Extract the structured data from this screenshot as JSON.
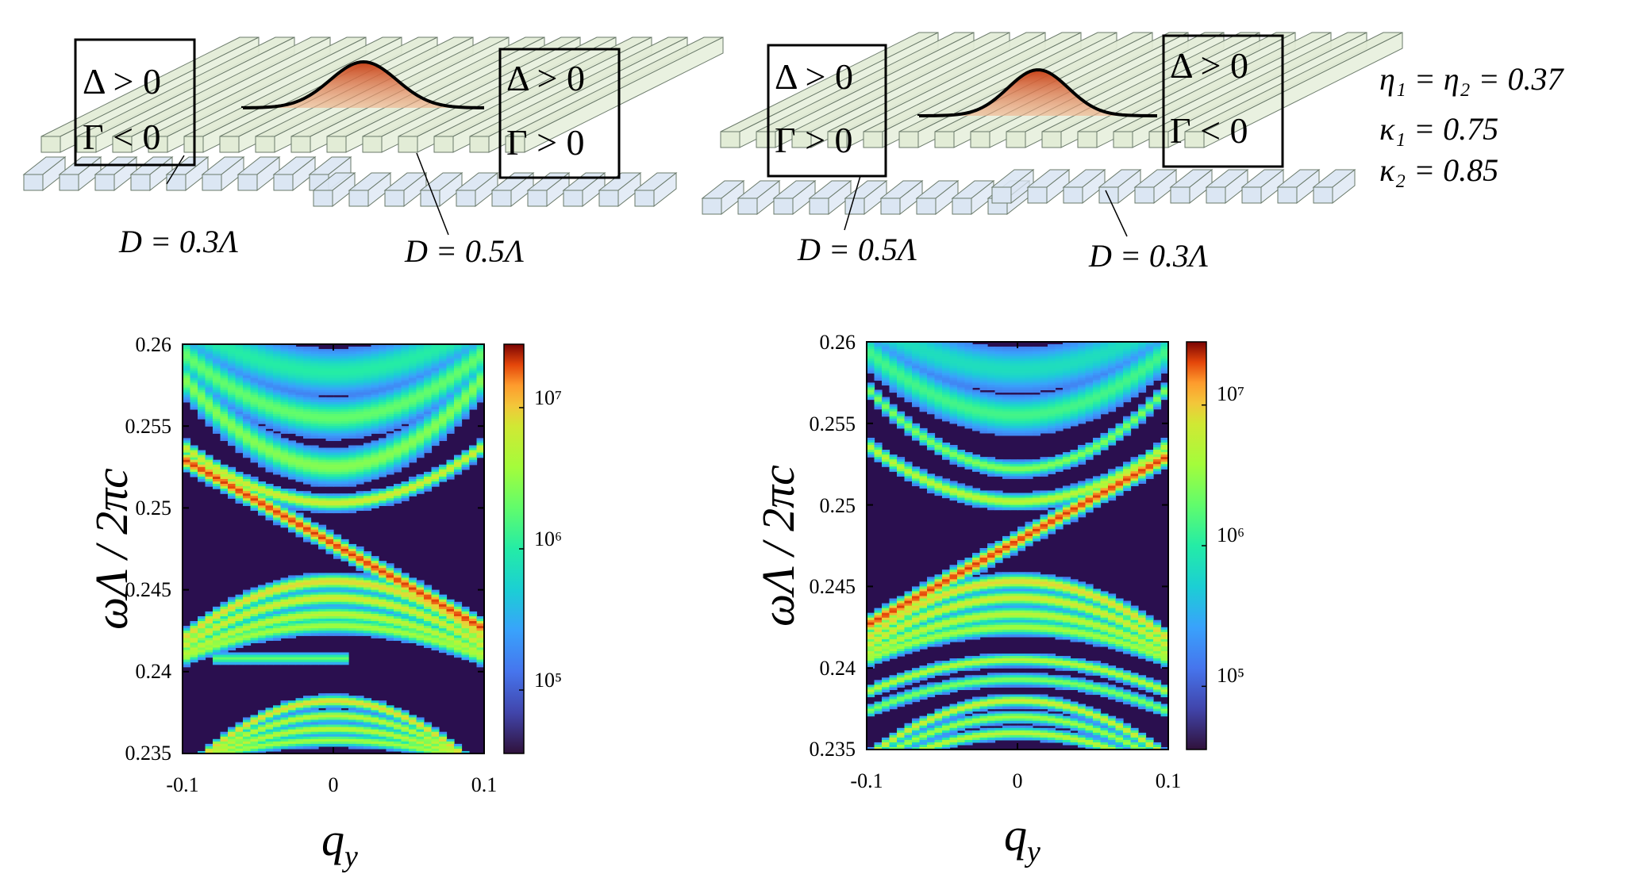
{
  "figure": {
    "left_structure": {
      "box_left": {
        "line1": "Δ > 0",
        "line2": "Γ < 0"
      },
      "box_right": {
        "line1": "Δ > 0",
        "line2": "Γ > 0"
      },
      "label_bottom_left": "D = 0.3Λ",
      "label_bottom_right": "D = 0.5Λ"
    },
    "right_structure": {
      "box_left": {
        "line1": "Δ > 0",
        "line2": "Γ > 0"
      },
      "box_right": {
        "line1": "Δ > 0",
        "line2": "Γ < 0"
      },
      "label_bottom_left": "D = 0.5Λ",
      "label_bottom_right": "D = 0.3Λ"
    },
    "parameters": [
      "η₁ = η₂ = 0.37",
      "κ₁ = 0.75",
      "κ₂ = 0.85"
    ],
    "colors": {
      "background": "#2a0f4f",
      "green_bars": "#e2ecd6",
      "blue_bars": "#dbe6f3",
      "pulse": "#d9531e"
    }
  },
  "chart_data": [
    {
      "type": "heatmap",
      "title": "",
      "xlabel": "q_y",
      "ylabel": "ωΛ / 2πc",
      "xlim": [
        -0.1,
        0.1
      ],
      "ylim": [
        0.235,
        0.26
      ],
      "x_ticks": [
        "-0.1",
        "0",
        "0.1"
      ],
      "y_ticks": [
        "0.26",
        "0.255",
        "0.25",
        "0.245",
        "0.24",
        "0.235"
      ],
      "colorbar": {
        "scale": "log",
        "ticks": [
          "10⁷",
          "10⁶",
          "10⁵"
        ],
        "range": [
          30000,
          20000000
        ]
      },
      "bands": [
        {
          "kind": "parabola",
          "vertex": 0.2583,
          "curvature": 0.3,
          "strength": 0.35,
          "width": 0.0012
        },
        {
          "kind": "parabola",
          "vertex": 0.2555,
          "curvature": 0.4,
          "strength": 0.45,
          "width": 0.001
        },
        {
          "kind": "parabola",
          "vertex": 0.2525,
          "curvature": 0.55,
          "strength": 0.5,
          "width": 0.0009
        },
        {
          "kind": "parabola",
          "vertex": 0.2503,
          "curvature": 0.35,
          "strength": 0.65,
          "width": 0.0004
        },
        {
          "kind": "line",
          "at_q0": 0.2478,
          "slope": -0.052,
          "strength": 0.95,
          "width": 0.00045
        },
        {
          "kind": "parabola",
          "vertex": 0.2455,
          "curvature": -0.35,
          "strength": 0.7,
          "width": 0.0004
        },
        {
          "kind": "parabola",
          "vertex": 0.2445,
          "curvature": -0.3,
          "strength": 0.65,
          "width": 0.0004
        },
        {
          "kind": "parabola",
          "vertex": 0.2435,
          "curvature": -0.25,
          "strength": 0.6,
          "width": 0.0004
        },
        {
          "kind": "parabola",
          "vertex": 0.2428,
          "curvature": -0.2,
          "strength": 0.55,
          "width": 0.0004
        },
        {
          "kind": "segment",
          "at": 0.2408,
          "from": -0.08,
          "to": 0.01,
          "strength": 0.45,
          "width": 0.0003
        },
        {
          "kind": "parabola",
          "vertex": 0.2382,
          "curvature": -0.45,
          "strength": 0.7,
          "width": 0.0003
        },
        {
          "kind": "parabola",
          "vertex": 0.2373,
          "curvature": -0.35,
          "strength": 0.6,
          "width": 0.0003
        },
        {
          "kind": "parabola",
          "vertex": 0.2365,
          "curvature": -0.25,
          "strength": 0.6,
          "width": 0.0003
        },
        {
          "kind": "parabola",
          "vertex": 0.2358,
          "curvature": -0.15,
          "strength": 0.55,
          "width": 0.0003
        }
      ]
    },
    {
      "type": "heatmap",
      "title": "",
      "xlabel": "q_y",
      "ylabel": "ωΛ / 2πc",
      "xlim": [
        -0.1,
        0.1
      ],
      "ylim": [
        0.235,
        0.26
      ],
      "x_ticks": [
        "-0.1",
        "0",
        "0.1"
      ],
      "y_ticks": [
        "0.26",
        "0.255",
        "0.25",
        "0.245",
        "0.24",
        "0.235"
      ],
      "colorbar": {
        "scale": "log",
        "ticks": [
          "10⁷",
          "10⁶",
          "10⁵"
        ],
        "range": [
          30000,
          20000000
        ]
      },
      "bands": [
        {
          "kind": "parabola",
          "vertex": 0.2583,
          "curvature": 0.3,
          "strength": 0.3,
          "width": 0.0012
        },
        {
          "kind": "parabola",
          "vertex": 0.2555,
          "curvature": 0.4,
          "strength": 0.4,
          "width": 0.001
        },
        {
          "kind": "parabola",
          "vertex": 0.2522,
          "curvature": 0.5,
          "strength": 0.5,
          "width": 0.0004
        },
        {
          "kind": "parabola",
          "vertex": 0.2502,
          "curvature": 0.35,
          "strength": 0.6,
          "width": 0.0004
        },
        {
          "kind": "line",
          "at_q0": 0.2478,
          "slope": 0.052,
          "strength": 0.95,
          "width": 0.00045
        },
        {
          "kind": "parabola",
          "vertex": 0.2453,
          "curvature": -0.35,
          "strength": 0.7,
          "width": 0.0004
        },
        {
          "kind": "parabola",
          "vertex": 0.2443,
          "curvature": -0.3,
          "strength": 0.65,
          "width": 0.0004
        },
        {
          "kind": "parabola",
          "vertex": 0.2433,
          "curvature": -0.25,
          "strength": 0.6,
          "width": 0.0004
        },
        {
          "kind": "parabola",
          "vertex": 0.2425,
          "curvature": -0.2,
          "strength": 0.55,
          "width": 0.0004
        },
        {
          "kind": "parabola",
          "vertex": 0.2405,
          "curvature": -0.2,
          "strength": 0.6,
          "width": 0.0003
        },
        {
          "kind": "parabola",
          "vertex": 0.2393,
          "curvature": -0.2,
          "strength": 0.5,
          "width": 0.0003
        },
        {
          "kind": "parabola",
          "vertex": 0.238,
          "curvature": -0.35,
          "strength": 0.65,
          "width": 0.0003
        },
        {
          "kind": "parabola",
          "vertex": 0.237,
          "curvature": -0.3,
          "strength": 0.55,
          "width": 0.0003
        },
        {
          "kind": "parabola",
          "vertex": 0.236,
          "curvature": -0.25,
          "strength": 0.6,
          "width": 0.0003
        }
      ]
    }
  ]
}
